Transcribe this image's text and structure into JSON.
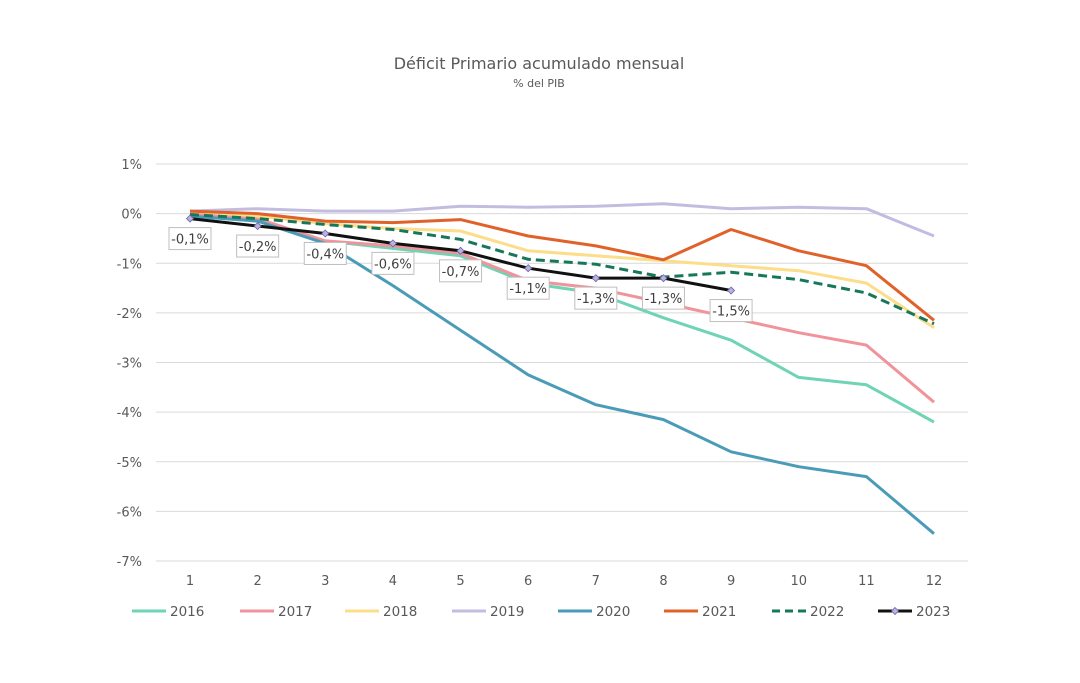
{
  "chart_data": {
    "type": "line",
    "title": "Déficit Primario acumulado mensual",
    "subtitle": "% del PIB",
    "xlabel": "",
    "ylabel": "",
    "x": [
      1,
      2,
      3,
      4,
      5,
      6,
      7,
      8,
      9,
      10,
      11,
      12
    ],
    "ylim": [
      -7,
      1
    ],
    "yticks": [
      1,
      0,
      -1,
      -2,
      -3,
      -4,
      -5,
      -6,
      -7
    ],
    "ytick_labels": [
      "1%",
      "0%",
      "-1%",
      "-2%",
      "-3%",
      "-4%",
      "-5%",
      "-6%",
      "-7%"
    ],
    "xtick_labels": [
      "1",
      "2",
      "3",
      "4",
      "5",
      "6",
      "7",
      "8",
      "9",
      "10",
      "11",
      "12"
    ],
    "grid": true,
    "legend_position": "bottom",
    "series": [
      {
        "name": "2016",
        "color": "#6fd3b5",
        "style": "solid",
        "values": [
          -0.05,
          -0.15,
          -0.55,
          -0.7,
          -0.85,
          -1.4,
          -1.6,
          -2.1,
          -2.55,
          -3.3,
          -3.45,
          -4.2
        ]
      },
      {
        "name": "2017",
        "color": "#f0939a",
        "style": "solid",
        "values": [
          0.0,
          -0.1,
          -0.55,
          -0.65,
          -0.8,
          -1.35,
          -1.5,
          -1.8,
          -2.1,
          -2.4,
          -2.65,
          -3.8
        ]
      },
      {
        "name": "2018",
        "color": "#fbdd8a",
        "style": "solid",
        "values": [
          0.05,
          -0.05,
          -0.2,
          -0.3,
          -0.35,
          -0.75,
          -0.85,
          -0.95,
          -1.05,
          -1.15,
          -1.4,
          -2.3
        ]
      },
      {
        "name": "2019",
        "color": "#c2bde0",
        "style": "solid",
        "values": [
          0.05,
          0.1,
          0.05,
          0.05,
          0.15,
          0.13,
          0.15,
          0.2,
          0.1,
          0.13,
          0.1,
          -0.45
        ]
      },
      {
        "name": "2020",
        "color": "#4a9bb8",
        "style": "solid",
        "values": [
          -0.05,
          -0.15,
          -0.6,
          -1.45,
          -2.35,
          -3.25,
          -3.85,
          -4.15,
          -4.8,
          -5.1,
          -5.3,
          -6.45
        ]
      },
      {
        "name": "2021",
        "color": "#e0622a",
        "style": "solid",
        "values": [
          0.05,
          0.0,
          -0.15,
          -0.18,
          -0.12,
          -0.45,
          -0.65,
          -0.93,
          -0.32,
          -0.75,
          -1.05,
          -2.15
        ]
      },
      {
        "name": "2022",
        "color": "#17775a",
        "style": "dashed",
        "values": [
          -0.02,
          -0.1,
          -0.22,
          -0.32,
          -0.52,
          -0.92,
          -1.02,
          -1.28,
          -1.18,
          -1.33,
          -1.6,
          -2.22
        ]
      },
      {
        "name": "2023",
        "color": "#111111",
        "style": "solid-markers",
        "marker_color": "#b9b3e0",
        "values": [
          -0.1,
          -0.25,
          -0.4,
          -0.6,
          -0.75,
          -1.1,
          -1.3,
          -1.3,
          -1.55
        ],
        "data_labels": [
          "-0,1%",
          "-0,2%",
          "-0,4%",
          "-0,6%",
          "-0,7%",
          "-1,1%",
          "-1,3%",
          "-1,3%",
          "-1,5%"
        ]
      }
    ]
  }
}
